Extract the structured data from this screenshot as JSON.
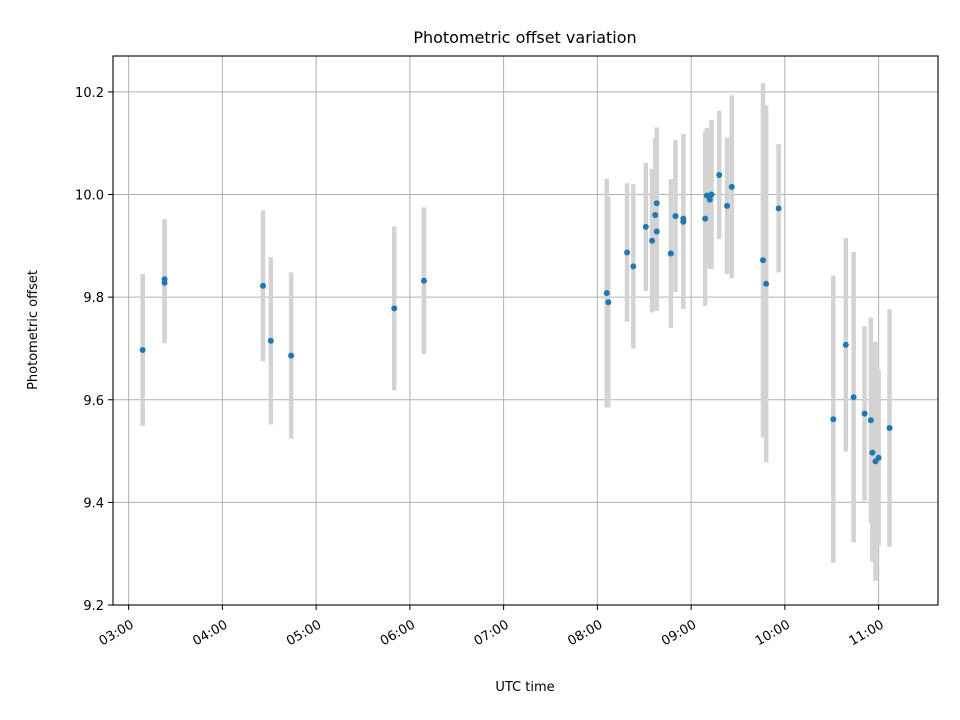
{
  "chart_data": {
    "type": "scatter",
    "title": "Photometric offset variation",
    "xlabel": "UTC time",
    "ylabel": "Photometric offset",
    "xlim": [
      "02:50",
      "11:38"
    ],
    "ylim": [
      9.2,
      10.27
    ],
    "x_ticks": [
      "03:00",
      "04:00",
      "05:00",
      "06:00",
      "07:00",
      "08:00",
      "09:00",
      "10:00",
      "11:00"
    ],
    "y_ticks": [
      9.2,
      9.4,
      9.6,
      9.8,
      10.0,
      10.2
    ],
    "y_tick_labels": [
      "9.2",
      "9.4",
      "9.6",
      "9.8",
      "10.0",
      "10.2"
    ],
    "grid": true,
    "colors": {
      "point": "#1f77b4",
      "errorbar": "#d3d3d3",
      "grid": "#b0b0b0"
    },
    "points": [
      {
        "x": "03:09",
        "y": 9.697,
        "err": 0.148
      },
      {
        "x": "03:23",
        "y": 9.828,
        "err": 0.118
      },
      {
        "x": "03:23",
        "y": 9.835,
        "err": 0.117
      },
      {
        "x": "04:26",
        "y": 9.822,
        "err": 0.147
      },
      {
        "x": "04:31",
        "y": 9.715,
        "err": 0.163
      },
      {
        "x": "04:44",
        "y": 9.686,
        "err": 0.162
      },
      {
        "x": "05:50",
        "y": 9.778,
        "err": 0.16
      },
      {
        "x": "06:09",
        "y": 9.832,
        "err": 0.143
      },
      {
        "x": "08:06",
        "y": 9.808,
        "err": 0.223
      },
      {
        "x": "08:07",
        "y": 9.79,
        "err": 0.205
      },
      {
        "x": "08:19",
        "y": 9.887,
        "err": 0.135
      },
      {
        "x": "08:23",
        "y": 9.86,
        "err": 0.16
      },
      {
        "x": "08:31",
        "y": 9.937,
        "err": 0.125
      },
      {
        "x": "08:35",
        "y": 9.91,
        "err": 0.14
      },
      {
        "x": "08:37",
        "y": 9.96,
        "err": 0.15
      },
      {
        "x": "08:38",
        "y": 9.928,
        "err": 0.155
      },
      {
        "x": "08:38",
        "y": 9.983,
        "err": 0.148
      },
      {
        "x": "08:47",
        "y": 9.885,
        "err": 0.145
      },
      {
        "x": "08:50",
        "y": 9.958,
        "err": 0.148
      },
      {
        "x": "08:55",
        "y": 9.953,
        "err": 0.165
      },
      {
        "x": "08:55",
        "y": 9.947,
        "err": 0.17
      },
      {
        "x": "09:09",
        "y": 9.953,
        "err": 0.17
      },
      {
        "x": "09:10",
        "y": 9.998,
        "err": 0.132
      },
      {
        "x": "09:12",
        "y": 9.99,
        "err": 0.135
      },
      {
        "x": "09:13",
        "y": 10.0,
        "err": 0.145
      },
      {
        "x": "09:18",
        "y": 10.038,
        "err": 0.125
      },
      {
        "x": "09:23",
        "y": 9.978,
        "err": 0.133
      },
      {
        "x": "09:26",
        "y": 10.015,
        "err": 0.178
      },
      {
        "x": "09:46",
        "y": 9.872,
        "err": 0.345
      },
      {
        "x": "09:48",
        "y": 9.826,
        "err": 0.348
      },
      {
        "x": "09:56",
        "y": 9.973,
        "err": 0.125
      },
      {
        "x": "10:31",
        "y": 9.562,
        "err": 0.28
      },
      {
        "x": "10:39",
        "y": 9.707,
        "err": 0.208
      },
      {
        "x": "10:44",
        "y": 9.605,
        "err": 0.283
      },
      {
        "x": "10:51",
        "y": 9.573,
        "err": 0.17
      },
      {
        "x": "10:55",
        "y": 9.56,
        "err": 0.2
      },
      {
        "x": "10:56",
        "y": 9.497,
        "err": 0.213
      },
      {
        "x": "10:58",
        "y": 9.48,
        "err": 0.233
      },
      {
        "x": "11:00",
        "y": 9.487,
        "err": 0.17
      },
      {
        "x": "11:07",
        "y": 9.545,
        "err": 0.232
      }
    ]
  }
}
